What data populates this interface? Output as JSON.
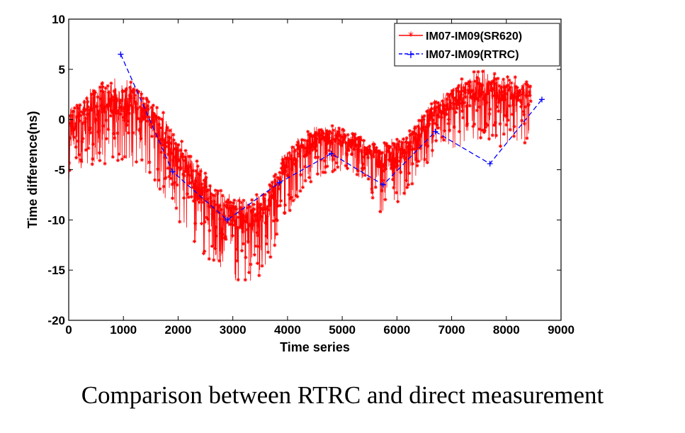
{
  "caption": "Comparison between RTRC and direct measurement",
  "chart_data": {
    "type": "line",
    "xlabel": "Time series",
    "ylabel": "Time difference(ns)",
    "xlim": [
      0,
      9000
    ],
    "ylim": [
      -20,
      10
    ],
    "xticks": [
      0,
      1000,
      2000,
      3000,
      4000,
      5000,
      6000,
      7000,
      8000,
      9000
    ],
    "yticks": [
      -20,
      -15,
      -10,
      -5,
      0,
      5,
      10
    ],
    "xtick_labels": [
      "0",
      "1000",
      "2000",
      "3000",
      "4000",
      "5000",
      "6000",
      "7000",
      "8000",
      "9000"
    ],
    "ytick_labels": [
      "-20",
      "-15",
      "-10",
      "-5",
      "0",
      "5",
      "10"
    ],
    "grid": false,
    "legend_position": "top-right",
    "series": [
      {
        "name": "IM07-IM09(SR620)",
        "color": "#ff0000",
        "marker": "*",
        "line_style": "solid",
        "x_start": 0,
        "x_end": 8450,
        "baseline_x": [
          0,
          300,
          600,
          900,
          1200,
          1500,
          1800,
          2100,
          2400,
          2700,
          3000,
          3300,
          3600,
          3900,
          4200,
          4500,
          4800,
          5100,
          5400,
          5700,
          6000,
          6300,
          6600,
          6900,
          7200,
          7500,
          7800,
          8100,
          8450
        ],
        "baseline_y": [
          -1,
          0.5,
          1.5,
          1.5,
          1,
          0,
          -2.5,
          -5,
          -7,
          -9,
          -10,
          -10.5,
          -9.5,
          -5.5,
          -3.5,
          -2.5,
          -2,
          -2.5,
          -3,
          -4.5,
          -4,
          -2.5,
          0,
          1,
          2,
          3,
          2.5,
          2,
          2
        ],
        "spread_y": [
          5,
          5,
          6,
          6,
          6,
          6,
          6,
          6,
          6,
          6,
          6,
          6,
          6,
          5,
          4,
          4,
          3.5,
          3,
          3,
          5,
          5,
          4,
          4,
          4,
          5,
          5,
          5,
          5,
          5
        ]
      },
      {
        "name": "IM07-IM09(RTRC)",
        "color": "#0000ff",
        "marker": "+",
        "line_style": "dashed",
        "x": [
          950,
          1900,
          2900,
          3850,
          4800,
          5750,
          6700,
          7700,
          8650
        ],
        "y": [
          6.5,
          -5.2,
          -10,
          -6.3,
          -3.4,
          -6.5,
          -1.2,
          -4.4,
          2
        ]
      }
    ]
  }
}
